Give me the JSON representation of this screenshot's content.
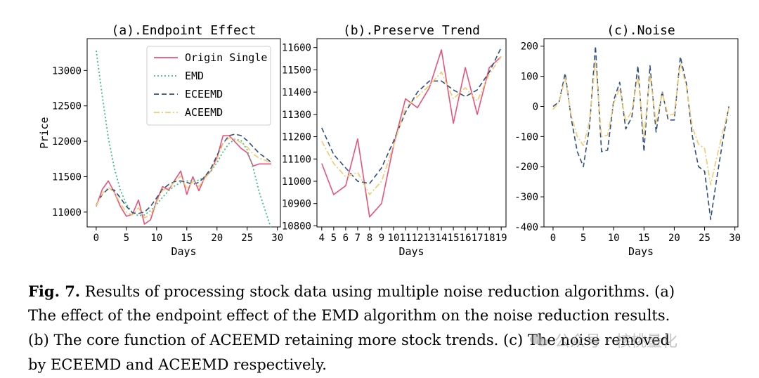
{
  "colors": {
    "origin": "#e8537a",
    "emd": "#3cbf8a",
    "eceemd": "#2f4f7f",
    "aceemd": "#f2c96d"
  },
  "chart_data": [
    {
      "type": "line",
      "title": "(a).Endpoint Effect",
      "xlabel": "Days",
      "ylabel": "Price",
      "xlim": [
        -1.5,
        30.5
      ],
      "ylim": [
        10790,
        13450
      ],
      "xticks": [
        0,
        5,
        10,
        15,
        20,
        25,
        30
      ],
      "yticks": [
        11000,
        11500,
        12000,
        12500,
        13000
      ],
      "legend": [
        "Origin Single",
        "EMD",
        "ECEEMD",
        "ACEEMD"
      ],
      "legend_position": "upper-right",
      "x": [
        0,
        1,
        2,
        3,
        4,
        5,
        6,
        7,
        8,
        9,
        10,
        11,
        12,
        13,
        14,
        15,
        16,
        17,
        18,
        19,
        20,
        21,
        22,
        23,
        24,
        25,
        26,
        27,
        28,
        29
      ],
      "series": [
        {
          "name": "Origin Single",
          "key": "origin",
          "values": [
            11080,
            11320,
            11440,
            11280,
            11080,
            10940,
            10970,
            11170,
            10830,
            10890,
            11160,
            11360,
            11310,
            11450,
            11580,
            11250,
            11500,
            11300,
            11500,
            11580,
            11770,
            12080,
            12080,
            11990,
            11900,
            11840,
            11650,
            11680,
            11680,
            11680
          ]
        },
        {
          "name": "EMD",
          "key": "emd",
          "values": [
            13280,
            12640,
            12050,
            11620,
            11310,
            11110,
            10990,
            10950,
            10960,
            11020,
            11110,
            11210,
            11300,
            11370,
            11420,
            11440,
            11440,
            11450,
            11500,
            11580,
            11700,
            11850,
            11970,
            12030,
            12010,
            11880,
            11620,
            11280,
            11020,
            10760
          ]
        },
        {
          "name": "ECEEMD",
          "key": "eceemd",
          "values": [
            11100,
            11250,
            11330,
            11310,
            11200,
            11080,
            10990,
            10980,
            11000,
            11080,
            11200,
            11320,
            11390,
            11430,
            11440,
            11420,
            11390,
            11420,
            11500,
            11620,
            11800,
            11970,
            12080,
            12100,
            12080,
            12010,
            11920,
            11830,
            11770,
            11700
          ]
        },
        {
          "name": "ACEEMD",
          "key": "aceemd",
          "values": [
            11090,
            11260,
            11350,
            11280,
            11120,
            11000,
            10960,
            11060,
            10920,
            10960,
            11140,
            11310,
            11340,
            11430,
            11510,
            11330,
            11430,
            11360,
            11480,
            11580,
            11750,
            11970,
            12050,
            12030,
            11980,
            11920,
            11820,
            11760,
            11730,
            11690
          ]
        }
      ]
    },
    {
      "type": "line",
      "title": "(b).Preserve Trend",
      "xlabel": "Days",
      "ylabel": "",
      "xlim": [
        3.6,
        19.4
      ],
      "ylim": [
        10795,
        11640
      ],
      "xticks": [
        4,
        5,
        6,
        7,
        8,
        9,
        10,
        11,
        12,
        13,
        14,
        15,
        16,
        17,
        18,
        19
      ],
      "yticks": [
        10800,
        10900,
        11000,
        11100,
        11200,
        11300,
        11400,
        11500,
        11600
      ],
      "x": [
        4,
        5,
        6,
        7,
        8,
        9,
        10,
        11,
        12,
        13,
        14,
        15,
        16,
        17,
        18,
        19
      ],
      "series": [
        {
          "name": "Origin Single",
          "key": "origin",
          "values": [
            11080,
            10940,
            10980,
            11190,
            10840,
            10900,
            11160,
            11370,
            11330,
            11420,
            11590,
            11260,
            11510,
            11300,
            11510,
            11560
          ]
        },
        {
          "name": "ECEEMD",
          "key": "eceemd",
          "values": [
            11240,
            11120,
            11060,
            11000,
            10990,
            11060,
            11180,
            11310,
            11400,
            11450,
            11450,
            11410,
            11380,
            11410,
            11490,
            11600
          ]
        },
        {
          "name": "ACEEMD",
          "key": "aceemd",
          "values": [
            11180,
            11080,
            11020,
            11040,
            10940,
            11000,
            11160,
            11330,
            11380,
            11430,
            11490,
            11370,
            11420,
            11360,
            11480,
            11560
          ]
        }
      ]
    },
    {
      "type": "line",
      "title": "(c).Noise",
      "xlabel": "Days",
      "ylabel": "",
      "xlim": [
        -1.5,
        30.5
      ],
      "ylim": [
        -400,
        225
      ],
      "xticks": [
        0,
        5,
        10,
        15,
        20,
        25,
        30
      ],
      "yticks": [
        -400,
        -300,
        -200,
        -100,
        0,
        100,
        200
      ],
      "x": [
        0,
        1,
        2,
        3,
        4,
        5,
        6,
        7,
        8,
        9,
        10,
        11,
        12,
        13,
        14,
        15,
        16,
        17,
        18,
        19,
        20,
        21,
        22,
        23,
        24,
        25,
        26,
        27,
        28,
        29
      ],
      "series": [
        {
          "name": "ECEEMD",
          "key": "eceemd",
          "values": [
            0,
            15,
            110,
            -40,
            -150,
            -200,
            -70,
            200,
            -150,
            -145,
            20,
            80,
            -75,
            -35,
            135,
            -150,
            135,
            -85,
            50,
            -45,
            -45,
            165,
            75,
            -100,
            -200,
            -215,
            -375,
            -240,
            -115,
            0
          ]
        },
        {
          "name": "ACEEMD",
          "key": "aceemd",
          "values": [
            -10,
            15,
            95,
            -30,
            -100,
            -130,
            -50,
            150,
            -100,
            -95,
            10,
            60,
            -50,
            -15,
            100,
            -100,
            105,
            -55,
            45,
            -30,
            -25,
            145,
            65,
            -70,
            -125,
            -140,
            -260,
            -170,
            -85,
            -5
          ]
        }
      ]
    }
  ],
  "caption": {
    "label": "Fig. 7.",
    "lines": [
      " Results of processing stock data using multiple noise reduction algorithms. (a)",
      "The effect of the endpoint effect of the EMD algorithm on the noise reduction results.",
      "(b) The core function of ACEEMD retaining more stock trends. (c) The noise removed",
      "by ECEEMD and ACEEMD respectively."
    ]
  },
  "watermark": "公众号 · 核桃量化"
}
